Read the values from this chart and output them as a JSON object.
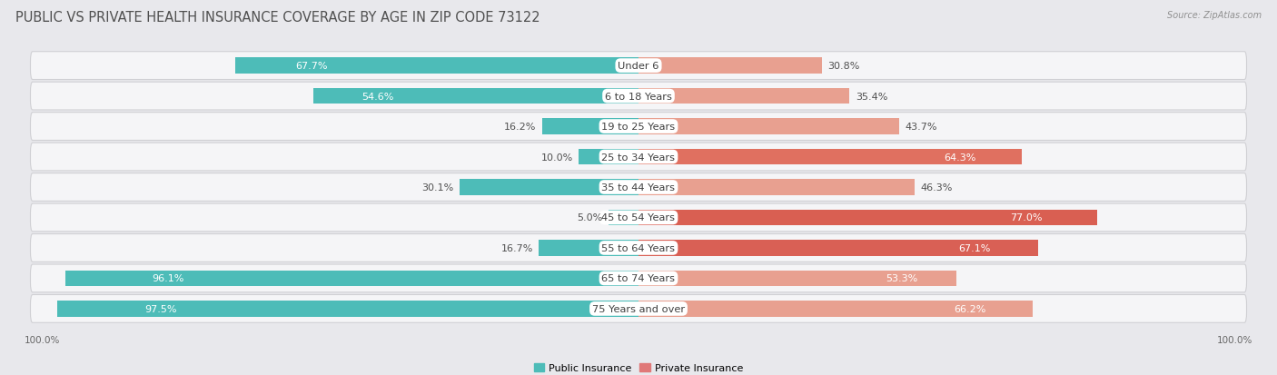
{
  "title": "PUBLIC VS PRIVATE HEALTH INSURANCE COVERAGE BY AGE IN ZIP CODE 73122",
  "source": "Source: ZipAtlas.com",
  "categories": [
    "Under 6",
    "6 to 18 Years",
    "19 to 25 Years",
    "25 to 34 Years",
    "35 to 44 Years",
    "45 to 54 Years",
    "55 to 64 Years",
    "65 to 74 Years",
    "75 Years and over"
  ],
  "public_values": [
    67.7,
    54.6,
    16.2,
    10.0,
    30.1,
    5.0,
    16.7,
    96.1,
    97.5
  ],
  "private_values": [
    30.8,
    35.4,
    43.7,
    64.3,
    46.3,
    77.0,
    67.1,
    53.3,
    66.2
  ],
  "public_color": "#4dbcb8",
  "private_colors": [
    "#e8a090",
    "#e8a090",
    "#e8a090",
    "#e07060",
    "#e8a090",
    "#d95f52",
    "#d96055",
    "#e8a090",
    "#e8a090"
  ],
  "background_color": "#e8e8ec",
  "row_bg_color": "#f5f5f7",
  "title_fontsize": 10.5,
  "label_fontsize": 8.2,
  "value_fontsize": 8.0,
  "bar_height": 0.52,
  "max_value": 100.0
}
